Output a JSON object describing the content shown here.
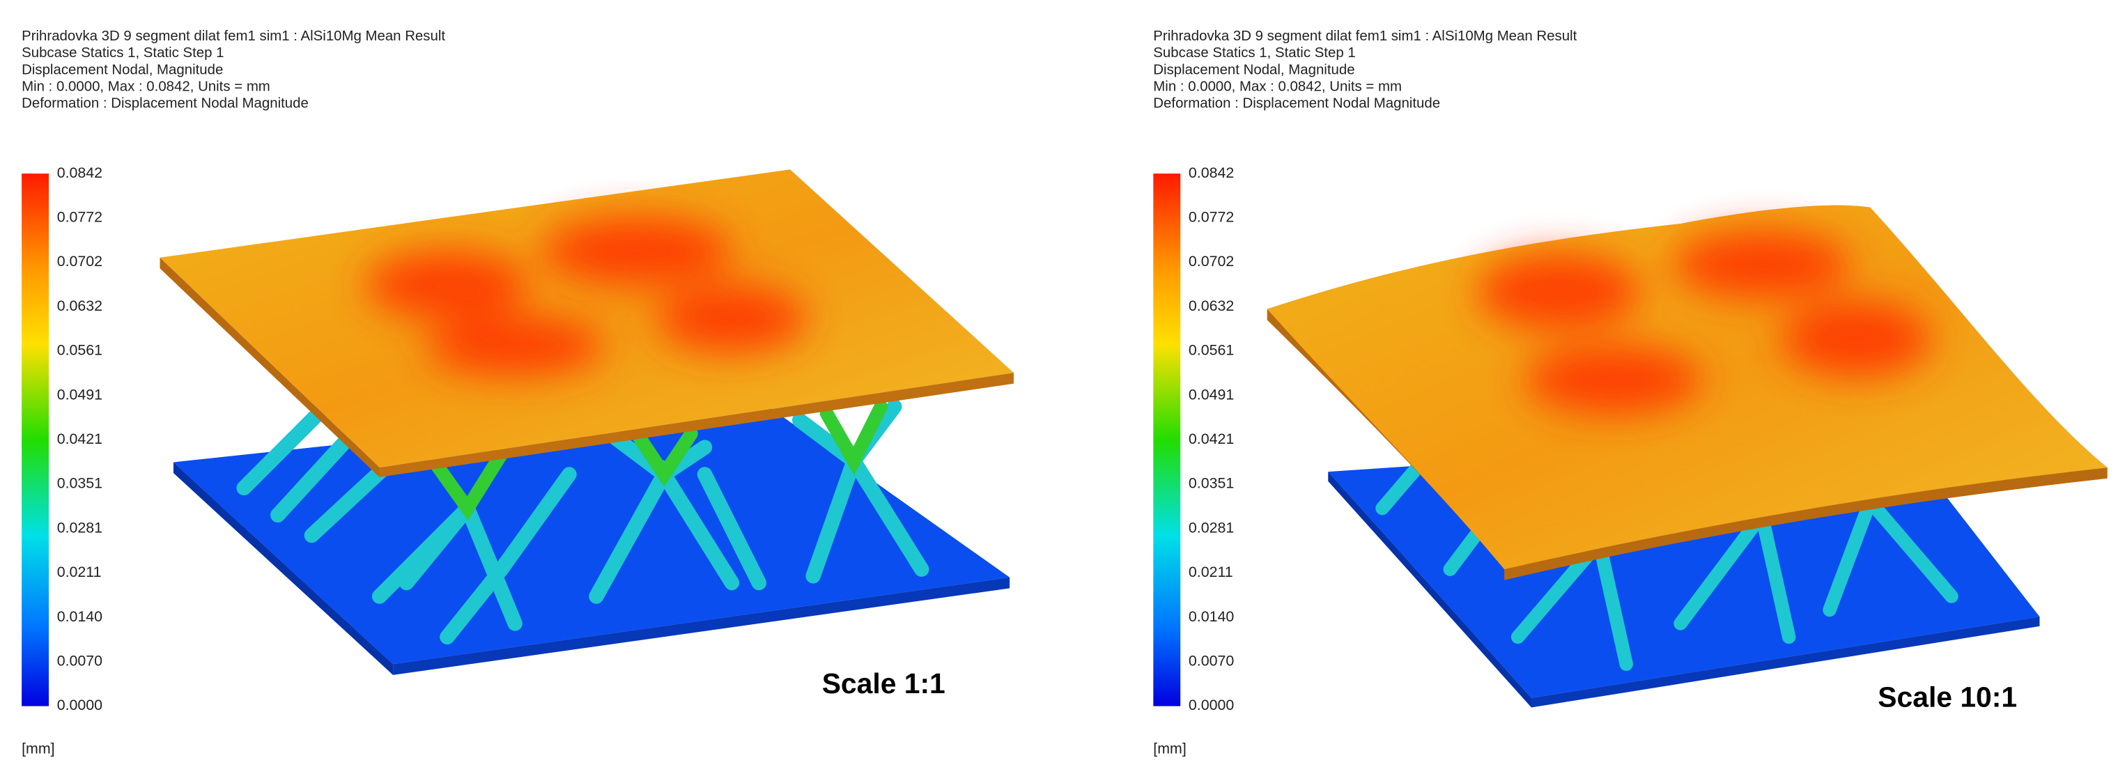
{
  "panels": [
    {
      "header": [
        "Prihradovka  3D  9  segment  dilat  fem1  sim1 : AlSi10Mg  Mean Result",
        "Subcase   Statics 1, Static Step 1",
        "Displacement   Nodal, Magnitude",
        "Min : 0.0000, Max : 0.0842, Units = mm",
        "Deformation : Displacement    Nodal Magnitude"
      ],
      "legend": {
        "ticks": [
          "0.0842",
          "0.0772",
          "0.0702",
          "0.0632",
          "0.0561",
          "0.0491",
          "0.0421",
          "0.0351",
          "0.0281",
          "0.0211",
          "0.0140",
          "0.0070",
          "0.0000"
        ],
        "unit": "[mm]"
      },
      "scale_label": "Scale 1:1"
    },
    {
      "header": [
        "Prihradovka  3D  9  segment  dilat  fem1  sim1 : AlSi10Mg  Mean Result",
        "Subcase   Statics 1, Static Step 1",
        "Displacement   Nodal, Magnitude",
        "Min : 0.0000, Max : 0.0842, Units = mm",
        "Deformation : Displacement    Nodal Magnitude"
      ],
      "legend": {
        "ticks": [
          "0.0842",
          "0.0772",
          "0.0702",
          "0.0632",
          "0.0561",
          "0.0491",
          "0.0421",
          "0.0351",
          "0.0281",
          "0.0211",
          "0.0140",
          "0.0070",
          "0.0000"
        ],
        "unit": "[mm]"
      },
      "scale_label": "Scale 10:1"
    }
  ]
}
